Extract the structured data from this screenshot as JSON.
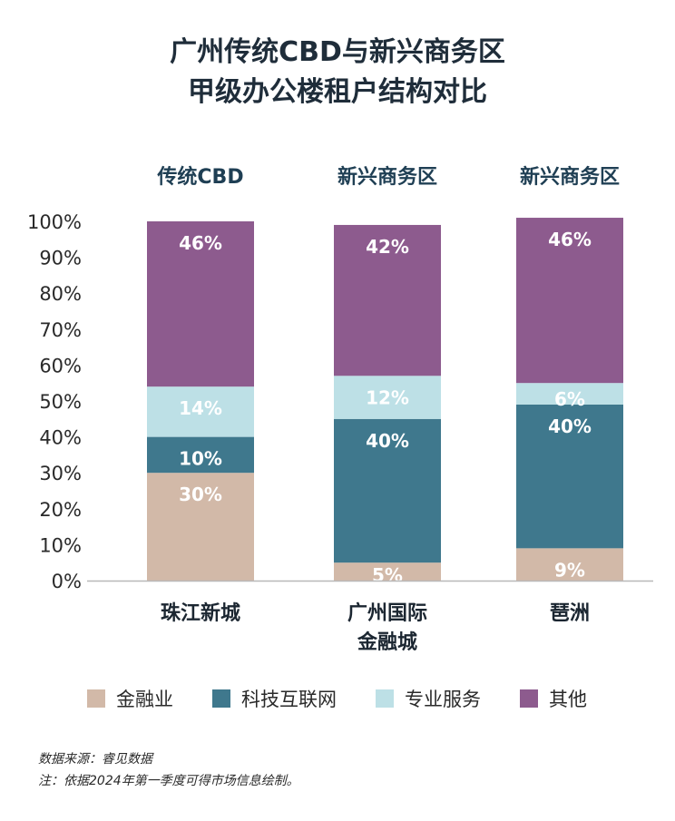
{
  "title_line1": "广州传统CBD与新兴商务区",
  "title_line2": "甲级办公楼租户结构对比",
  "chart_data": {
    "type": "bar",
    "stacked": true,
    "percent": true,
    "groups": [
      "传统CBD",
      "新兴商务区",
      "新兴商务区"
    ],
    "categories": [
      "珠江新城",
      "广州国际\n金融城",
      "琶洲"
    ],
    "series": [
      {
        "name": "金融业",
        "values": [
          30,
          5,
          9
        ],
        "labels": [
          "30%",
          "5%",
          "9%"
        ],
        "color": "#d2b9a8"
      },
      {
        "name": "科技互联网",
        "values": [
          10,
          40,
          40
        ],
        "labels": [
          "10%",
          "40%",
          "40%"
        ],
        "color": "#3f788d"
      },
      {
        "name": "专业服务",
        "values": [
          14,
          12,
          6
        ],
        "labels": [
          "14%",
          "12%",
          "6%"
        ],
        "color": "#bde0e6"
      },
      {
        "name": "其他",
        "values": [
          46,
          42,
          46
        ],
        "labels": [
          "46%",
          "42%",
          "46%"
        ],
        "color": "#8d5b8e"
      }
    ],
    "yticks": [
      "0%",
      "10%",
      "20%",
      "30%",
      "40%",
      "50%",
      "60%",
      "70%",
      "80%",
      "90%",
      "100%"
    ],
    "ylim": [
      0,
      100
    ],
    "grid": false,
    "legend_position": "bottom"
  },
  "footnote_source": "数据来源：睿见数据",
  "footnote_note": "注：依据2024年第一季度可得市场信息绘制。"
}
